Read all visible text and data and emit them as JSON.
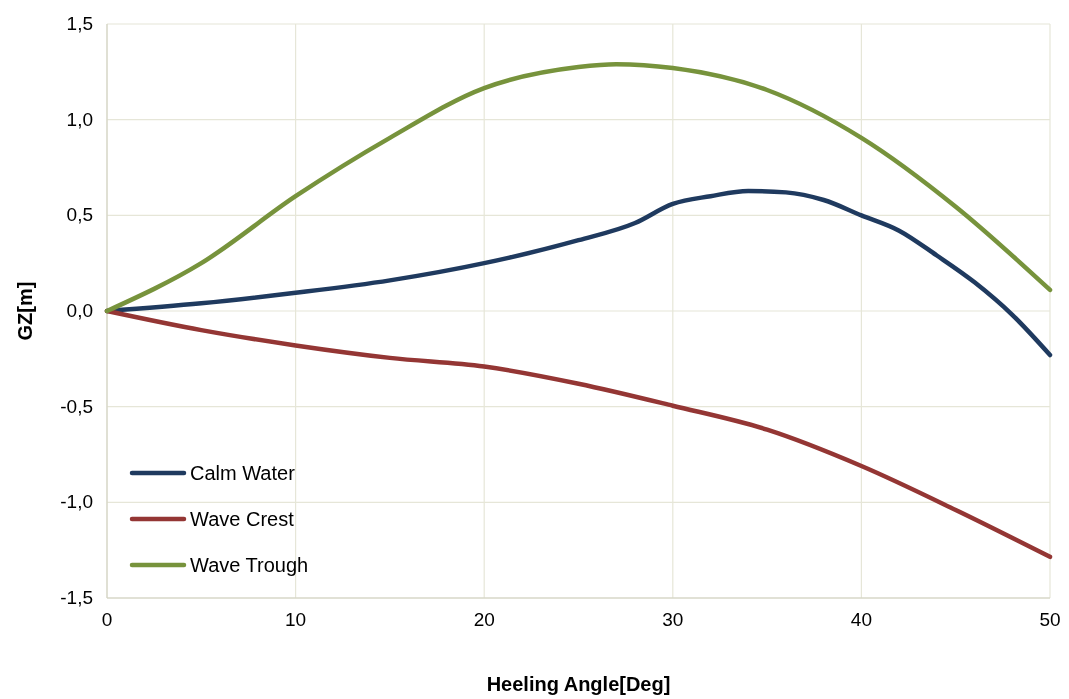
{
  "chart_data": {
    "type": "line",
    "xlabel": "Heeling Angle[Deg]",
    "ylabel": "GZ[m]",
    "xlim": [
      0,
      50
    ],
    "xticks": [
      0,
      10,
      20,
      30,
      40,
      50
    ],
    "ylim": [
      -1.5,
      1.5
    ],
    "yticks": [
      {
        "value": -1.5,
        "label": "-1,5"
      },
      {
        "value": -1,
        "label": "-1,0"
      },
      {
        "value": -0.5,
        "label": "-0,5"
      },
      {
        "value": 0,
        "label": "0,0"
      },
      {
        "value": 0.5,
        "label": "0,5"
      },
      {
        "value": 1,
        "label": "1,0"
      },
      {
        "value": 1.5,
        "label": "1,5"
      }
    ],
    "grid": true,
    "legend": "bottom left",
    "marker": "none",
    "line_style": "solid",
    "series": [
      {
        "name": "Calm Water",
        "color": "#1f3a5f",
        "x": [
          0,
          5,
          10,
          15,
          20,
          25,
          28,
          30,
          32,
          34,
          36,
          38,
          40,
          42,
          44,
          46,
          48,
          50
        ],
        "values": [
          0,
          0.04,
          0.095,
          0.16,
          0.25,
          0.37,
          0.46,
          0.56,
          0.6,
          0.627,
          0.62,
          0.58,
          0.5,
          0.42,
          0.29,
          0.15,
          -0.02,
          -0.23
        ]
      },
      {
        "name": "Wave Crest",
        "color": "#943634",
        "x": [
          0,
          5,
          10,
          15,
          20,
          25,
          30,
          35,
          40,
          45,
          50
        ],
        "values": [
          0,
          -0.1,
          -0.18,
          -0.245,
          -0.29,
          -0.38,
          -0.495,
          -0.62,
          -0.81,
          -1.04,
          -1.285
        ]
      },
      {
        "name": "Wave Trough",
        "color": "#77933c",
        "x": [
          0,
          5,
          10,
          15,
          20,
          25,
          27,
          30,
          35,
          40,
          45,
          50
        ],
        "values": [
          0,
          0.25,
          0.6,
          0.905,
          1.165,
          1.275,
          1.29,
          1.27,
          1.155,
          0.905,
          0.545,
          0.11
        ]
      }
    ]
  }
}
